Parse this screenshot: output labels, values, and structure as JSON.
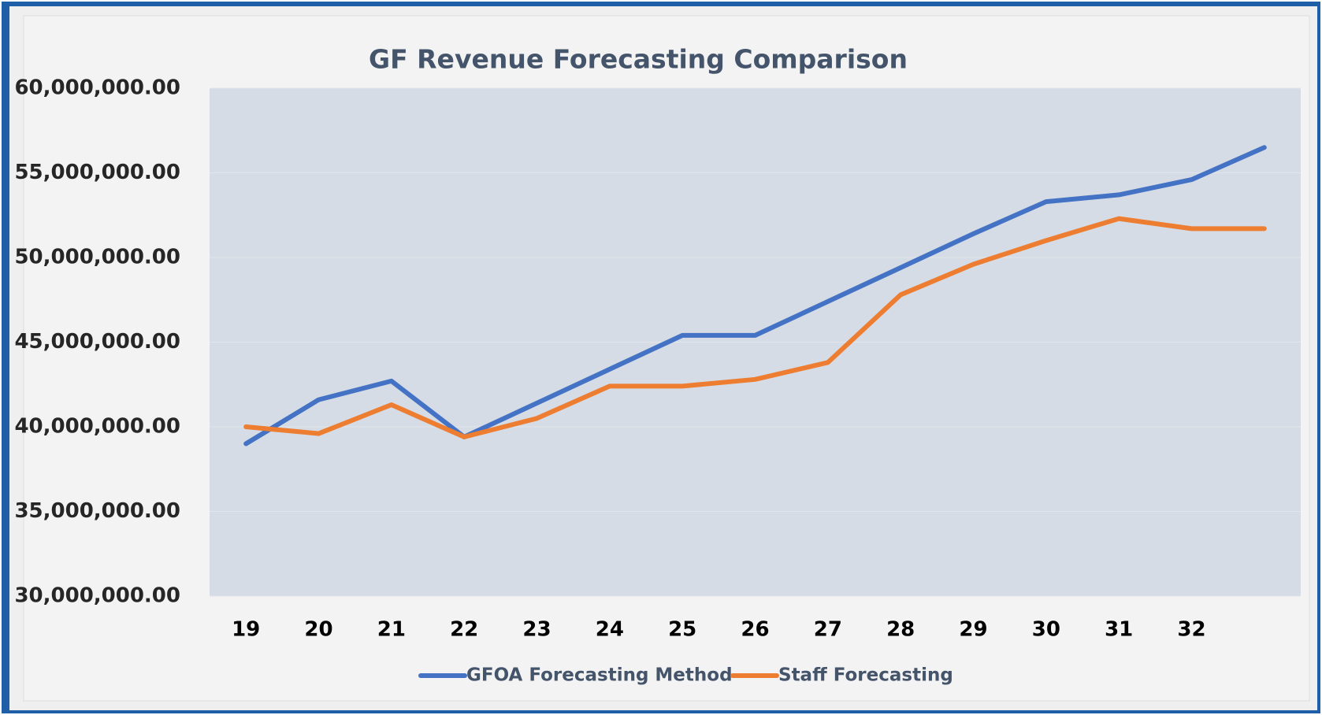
{
  "chart_data": {
    "type": "line",
    "title": "GF Revenue Forecasting Comparison",
    "categories": [
      "19",
      "20",
      "21",
      "22",
      "23",
      "24",
      "25",
      "26",
      "27",
      "28",
      "29",
      "30",
      "31",
      "32",
      null
    ],
    "series": [
      {
        "name": "GFOA Forecasting Method",
        "color": "#4472c4",
        "values": [
          39000000,
          41600000,
          42700000,
          39400000,
          41400000,
          43400000,
          45400000,
          45400000,
          47400000,
          49400000,
          51400000,
          53300000,
          53700000,
          54600000,
          56500000
        ]
      },
      {
        "name": "Staff Forecasting",
        "color": "#ed7d31",
        "values": [
          40000000,
          39600000,
          41300000,
          39400000,
          40500000,
          42400000,
          42400000,
          42800000,
          43800000,
          47800000,
          49600000,
          51000000,
          52300000,
          51700000,
          51700000
        ]
      }
    ],
    "ylim": [
      30000000,
      60000000
    ],
    "yticks": [
      {
        "value": 30000000,
        "label": "30,000,000.00"
      },
      {
        "value": 35000000,
        "label": "35,000,000.00"
      },
      {
        "value": 40000000,
        "label": "40,000,000.00"
      },
      {
        "value": 45000000,
        "label": "45,000,000.00"
      },
      {
        "value": 50000000,
        "label": "50,000,000.00"
      },
      {
        "value": 55000000,
        "label": "55,000,000.00"
      },
      {
        "value": 60000000,
        "label": "60,000,000.00"
      }
    ],
    "grid": true,
    "legend": "bottom"
  }
}
